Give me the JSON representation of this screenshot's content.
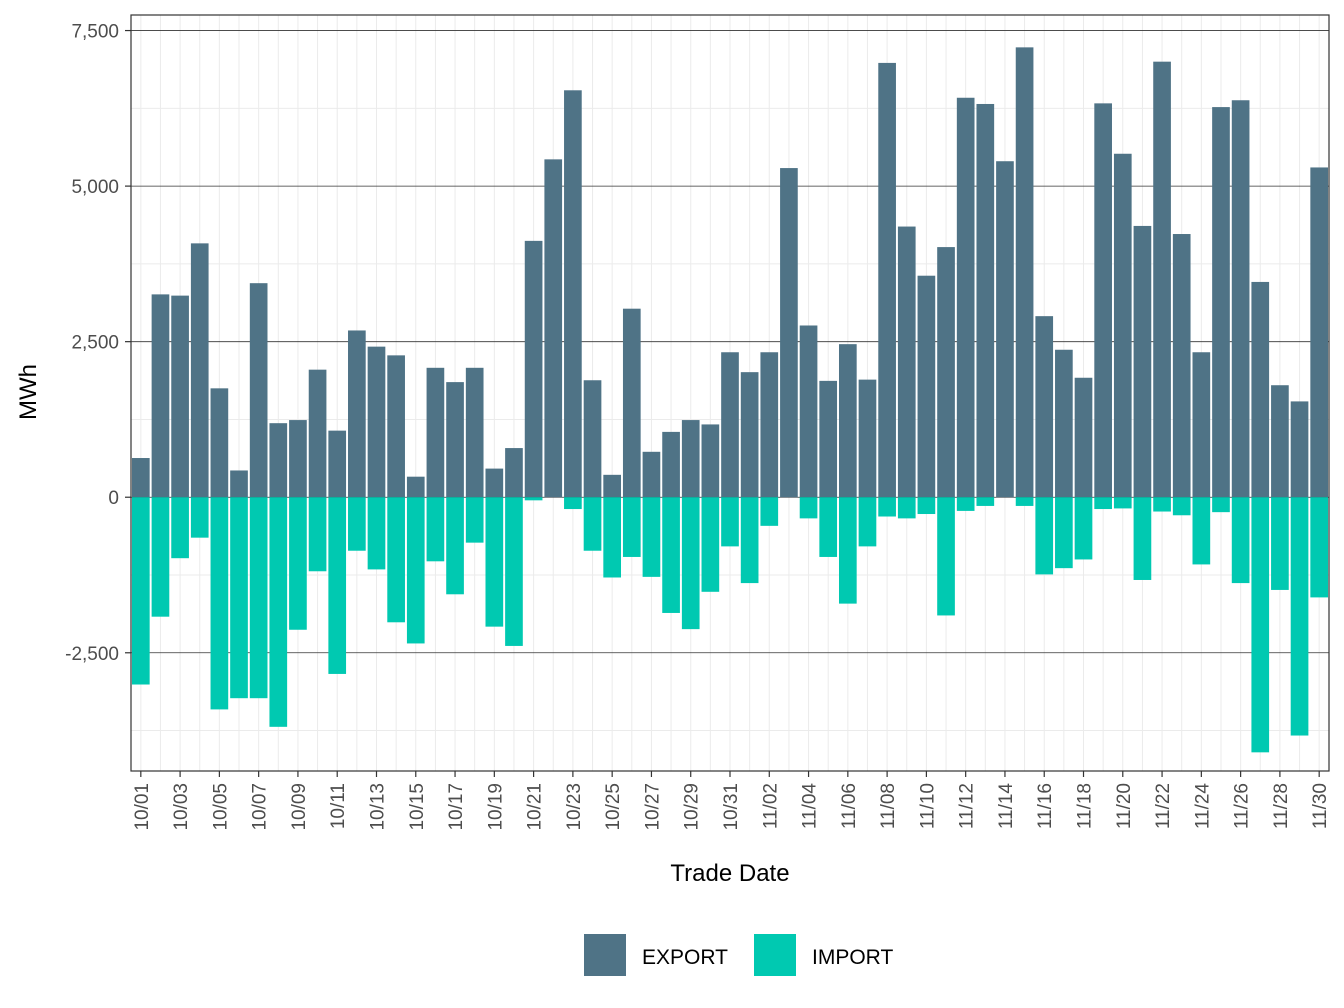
{
  "chart_data": {
    "type": "bar",
    "stacked": "diverging",
    "xlabel": "Trade Date",
    "ylabel": "MWh",
    "ylim": [
      -4400,
      7750
    ],
    "y_ticks": [
      -2500,
      0,
      2500,
      5000,
      7500
    ],
    "y_tick_labels": [
      "-2,500",
      "0",
      "2,500",
      "5,000",
      "7,500"
    ],
    "categories": [
      "10/01",
      "10/02",
      "10/03",
      "10/04",
      "10/05",
      "10/06",
      "10/07",
      "10/08",
      "10/09",
      "10/10",
      "10/11",
      "10/12",
      "10/13",
      "10/14",
      "10/15",
      "10/16",
      "10/17",
      "10/18",
      "10/19",
      "10/20",
      "10/21",
      "10/22",
      "10/23",
      "10/24",
      "10/25",
      "10/26",
      "10/27",
      "10/28",
      "10/29",
      "10/30",
      "10/31",
      "11/01",
      "11/02",
      "11/03",
      "11/04",
      "11/05",
      "11/06",
      "11/07",
      "11/08",
      "11/09",
      "11/10",
      "11/11",
      "11/12",
      "11/13",
      "11/14",
      "11/15",
      "11/16",
      "11/17",
      "11/18",
      "11/19",
      "11/20",
      "11/21",
      "11/22",
      "11/23",
      "11/24",
      "11/25",
      "11/26",
      "11/27",
      "11/28",
      "11/29",
      "11/30"
    ],
    "x_tick_labels": [
      "10/01",
      "10/03",
      "10/05",
      "10/07",
      "10/09",
      "10/11",
      "10/13",
      "10/15",
      "10/17",
      "10/19",
      "10/21",
      "10/23",
      "10/25",
      "10/27",
      "10/29",
      "10/31",
      "11/02",
      "11/04",
      "11/06",
      "11/08",
      "11/10",
      "11/12",
      "11/14",
      "11/16",
      "11/18",
      "11/20",
      "11/22",
      "11/24",
      "11/26",
      "11/28",
      "11/30"
    ],
    "series": [
      {
        "name": "EXPORT",
        "color": "#4f7386",
        "values": [
          630,
          3260,
          3240,
          4080,
          1750,
          430,
          3440,
          1190,
          1240,
          2050,
          1070,
          2680,
          2420,
          2280,
          330,
          2080,
          1850,
          2080,
          460,
          790,
          4120,
          5430,
          6540,
          1880,
          360,
          3030,
          730,
          1050,
          1240,
          1170,
          2330,
          2010,
          2330,
          5290,
          2760,
          1870,
          2460,
          1890,
          6980,
          4350,
          3560,
          4020,
          6420,
          6320,
          5400,
          7230,
          2910,
          2370,
          1920,
          6330,
          5520,
          4360,
          7000,
          4230,
          2330,
          6270,
          6380,
          3460,
          1800,
          1540,
          5300
        ]
      },
      {
        "name": "IMPORT",
        "color": "#00c9b1",
        "values": [
          -3010,
          -1920,
          -980,
          -650,
          -3410,
          -3230,
          -3230,
          -3690,
          -2130,
          -1190,
          -2840,
          -860,
          -1160,
          -2010,
          -2350,
          -1030,
          -1560,
          -730,
          -2080,
          -2390,
          -50,
          0,
          -190,
          -860,
          -1290,
          -960,
          -1280,
          -1860,
          -2120,
          -1520,
          -790,
          -1380,
          -460,
          0,
          -340,
          -960,
          -1710,
          -790,
          -310,
          -340,
          -270,
          -1900,
          -220,
          -140,
          0,
          -140,
          -1240,
          -1140,
          -1000,
          -190,
          -180,
          -1330,
          -230,
          -290,
          -1080,
          -240,
          -1380,
          -4100,
          -1490,
          -3830,
          -1610
        ]
      }
    ],
    "legend": {
      "position": "bottom",
      "entries": [
        "EXPORT",
        "IMPORT"
      ]
    },
    "grid": true
  }
}
